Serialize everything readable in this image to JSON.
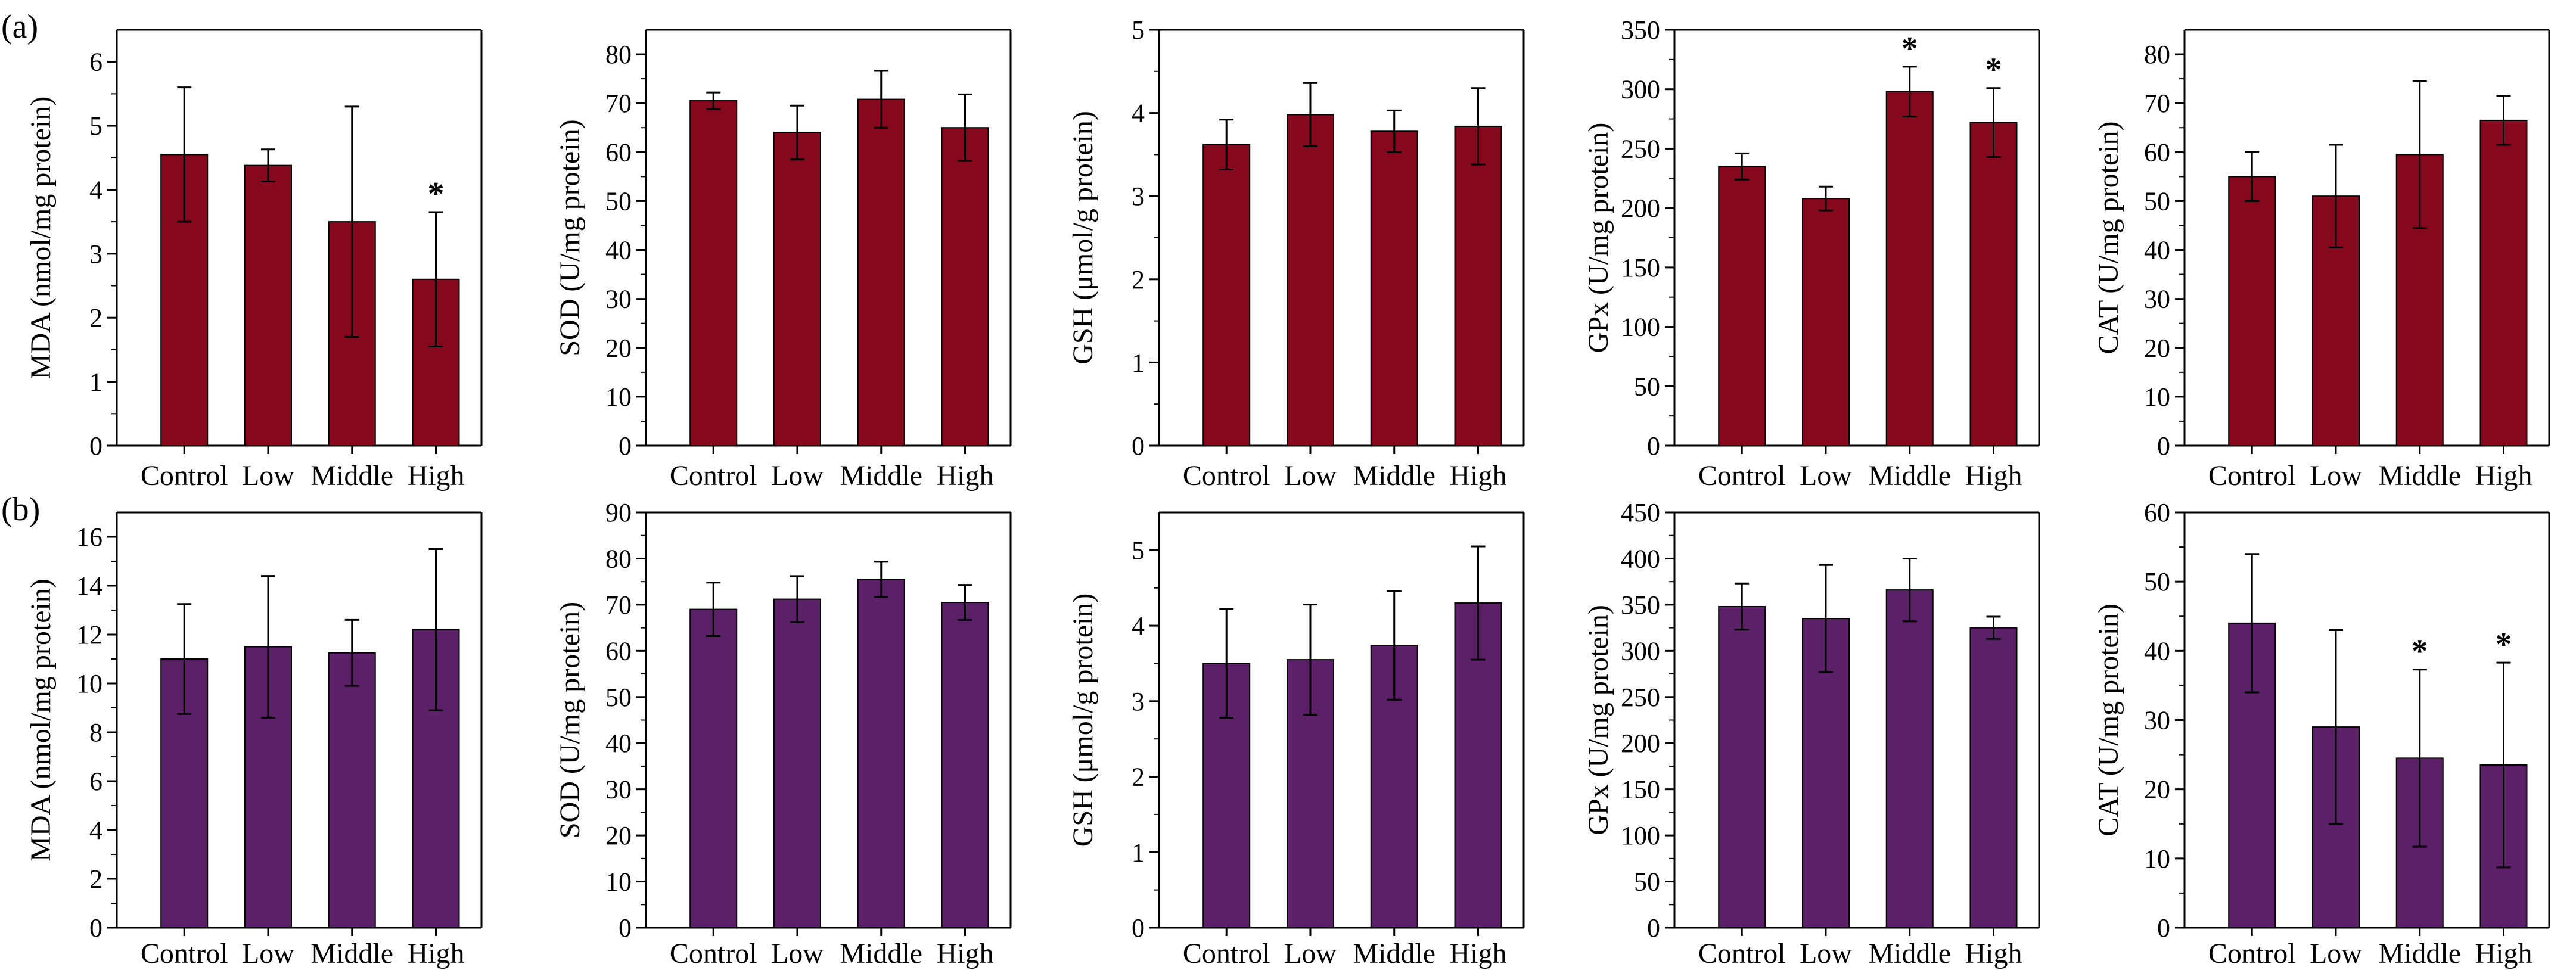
{
  "panels": [
    {
      "label": "(a)",
      "color": "#85081c",
      "charts": [
        {
          "type": "bar",
          "ylabel": "MDA (nmol/mg protein)",
          "categories": [
            "Control",
            "Low",
            "Middle",
            "High"
          ],
          "values": [
            4.55,
            4.38,
            3.5,
            2.6
          ],
          "errors": [
            1.05,
            0.25,
            1.8,
            1.05
          ],
          "significant": [
            false,
            false,
            false,
            true
          ],
          "significance_marker": "*",
          "ylim": [
            0,
            6.5
          ],
          "yticks": [
            0,
            1,
            2,
            3,
            4,
            5,
            6
          ]
        },
        {
          "type": "bar",
          "ylabel": "SOD (U/mg protein)",
          "categories": [
            "Control",
            "Low",
            "Middle",
            "High"
          ],
          "values": [
            70.5,
            64.0,
            70.8,
            65.0
          ],
          "errors": [
            1.7,
            5.5,
            5.8,
            6.8
          ],
          "significant": [
            false,
            false,
            false,
            false
          ],
          "significance_marker": "*",
          "ylim": [
            0,
            85
          ],
          "yticks": [
            0,
            10,
            20,
            30,
            40,
            50,
            60,
            70,
            80
          ]
        },
        {
          "type": "bar",
          "ylabel": "GSH (μmol/g protein)",
          "categories": [
            "Control",
            "Low",
            "Middle",
            "High"
          ],
          "values": [
            3.62,
            3.98,
            3.78,
            3.84
          ],
          "errors": [
            0.3,
            0.38,
            0.25,
            0.46
          ],
          "significant": [
            false,
            false,
            false,
            false
          ],
          "significance_marker": "*",
          "ylim": [
            0,
            5
          ],
          "yticks": [
            0,
            1,
            2,
            3,
            4,
            5
          ]
        },
        {
          "type": "bar",
          "ylabel": "GPx (U/mg protein)",
          "categories": [
            "Control",
            "Low",
            "Middle",
            "High"
          ],
          "values": [
            235,
            208,
            298,
            272
          ],
          "errors": [
            11,
            10,
            21,
            29
          ],
          "significant": [
            false,
            false,
            true,
            true
          ],
          "significance_marker": "*",
          "ylim": [
            0,
            350
          ],
          "yticks": [
            0,
            50,
            100,
            150,
            200,
            250,
            300,
            350
          ]
        },
        {
          "type": "bar",
          "ylabel": "CAT (U/mg protein)",
          "categories": [
            "Control",
            "Low",
            "Middle",
            "High"
          ],
          "values": [
            55.0,
            51.0,
            59.5,
            66.5
          ],
          "errors": [
            5.0,
            10.5,
            15.0,
            5.0
          ],
          "significant": [
            false,
            false,
            false,
            false
          ],
          "significance_marker": "*",
          "ylim": [
            0,
            85
          ],
          "yticks": [
            0,
            10,
            20,
            30,
            40,
            50,
            60,
            70,
            80
          ]
        }
      ]
    },
    {
      "label": "(b)",
      "color": "#5c2068",
      "charts": [
        {
          "type": "bar",
          "ylabel": "MDA (nmol/mg protein)",
          "categories": [
            "Control",
            "Low",
            "Middle",
            "High"
          ],
          "values": [
            11.0,
            11.5,
            11.25,
            12.2
          ],
          "errors": [
            2.25,
            2.9,
            1.35,
            3.3
          ],
          "significant": [
            false,
            false,
            false,
            false
          ],
          "significance_marker": "*",
          "ylim": [
            0,
            17
          ],
          "yticks": [
            0,
            2,
            4,
            6,
            8,
            10,
            12,
            14,
            16
          ]
        },
        {
          "type": "bar",
          "ylabel": "SOD (U/mg protein)",
          "categories": [
            "Control",
            "Low",
            "Middle",
            "High"
          ],
          "values": [
            69.0,
            71.2,
            75.5,
            70.5
          ],
          "errors": [
            5.8,
            5.0,
            3.8,
            3.8
          ],
          "significant": [
            false,
            false,
            false,
            false
          ],
          "significance_marker": "*",
          "ylim": [
            0,
            90
          ],
          "yticks": [
            0,
            10,
            20,
            30,
            40,
            50,
            60,
            70,
            80,
            90
          ]
        },
        {
          "type": "bar",
          "ylabel": "GSH (μmol/g protein)",
          "categories": [
            "Control",
            "Low",
            "Middle",
            "High"
          ],
          "values": [
            3.5,
            3.55,
            3.74,
            4.3
          ],
          "errors": [
            0.72,
            0.73,
            0.72,
            0.75
          ],
          "significant": [
            false,
            false,
            false,
            false
          ],
          "significance_marker": "*",
          "ylim": [
            0,
            5.5
          ],
          "yticks": [
            0,
            1,
            2,
            3,
            4,
            5
          ]
        },
        {
          "type": "bar",
          "ylabel": "GPx (U/mg protein)",
          "categories": [
            "Control",
            "Low",
            "Middle",
            "High"
          ],
          "values": [
            348,
            335,
            366,
            325
          ],
          "errors": [
            25,
            58,
            34,
            12
          ],
          "significant": [
            false,
            false,
            false,
            false
          ],
          "significance_marker": "*",
          "ylim": [
            0,
            450
          ],
          "yticks": [
            0,
            50,
            100,
            150,
            200,
            250,
            300,
            350,
            400,
            450
          ]
        },
        {
          "type": "bar",
          "ylabel": "CAT (U/mg protein)",
          "categories": [
            "Control",
            "Low",
            "Middle",
            "High"
          ],
          "values": [
            44.0,
            29.0,
            24.5,
            23.5
          ],
          "errors": [
            10.0,
            14.0,
            12.8,
            14.8
          ],
          "significant": [
            false,
            false,
            true,
            true
          ],
          "significance_marker": "*",
          "ylim": [
            0,
            60
          ],
          "yticks": [
            0,
            10,
            20,
            30,
            40,
            50,
            60
          ]
        }
      ]
    }
  ]
}
